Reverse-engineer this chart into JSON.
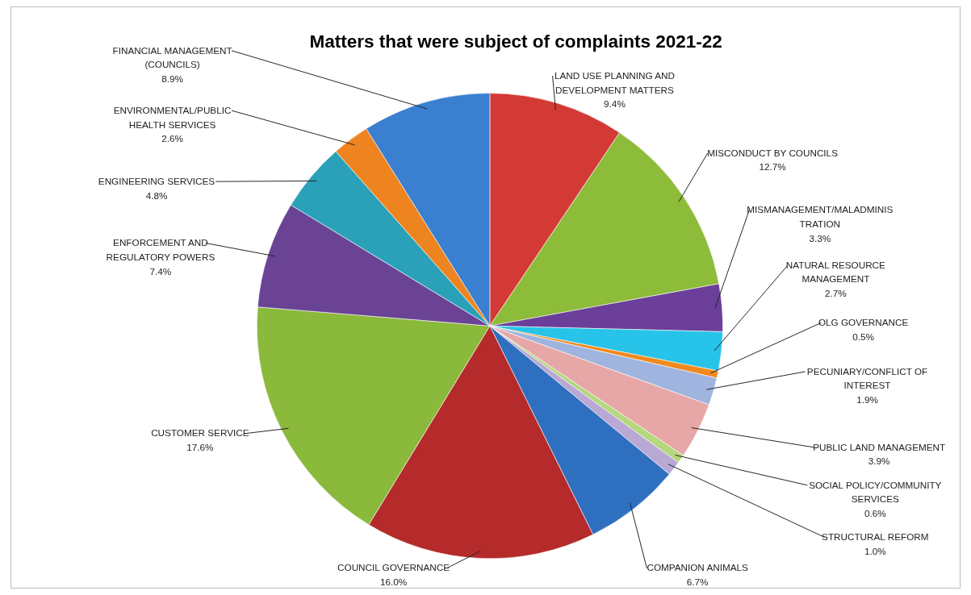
{
  "chart_data": {
    "type": "pie",
    "title": "Matters that were subject of complaints 2021-22",
    "categories": [
      "LAND USE PLANNING AND DEVELOPMENT MATTERS",
      "MISCONDUCT BY COUNCILS",
      "MISMANAGEMENT/MALADMINISTRATION",
      "NATURAL RESOURCE MANAGEMENT",
      "OLG GOVERNANCE",
      "PECUNIARY/CONFLICT OF INTEREST",
      "PUBLIC LAND MANAGEMENT",
      "SOCIAL POLICY/COMMUNITY SERVICES",
      "STRUCTURAL REFORM",
      "COMPANION ANIMALS",
      "COUNCIL GOVERNANCE",
      "CUSTOMER SERVICE",
      "ENFORCEMENT AND REGULATORY POWERS",
      "ENGINEERING SERVICES",
      "ENVIRONMENTAL/PUBLIC HEALTH SERVICES",
      "FINANCIAL MANAGEMENT (COUNCILS)"
    ],
    "values": [
      9.4,
      12.7,
      3.3,
      2.7,
      0.5,
      1.9,
      3.9,
      0.6,
      1.0,
      6.7,
      16.0,
      17.6,
      7.4,
      4.8,
      2.6,
      8.9
    ],
    "value_labels": [
      "9.4%",
      "12.7%",
      "3.3%",
      "2.7%",
      "0.5%",
      "1.9%",
      "3.9%",
      "0.6%",
      "1.0%",
      "6.7%",
      "16.0%",
      "17.6%",
      "7.4%",
      "4.8%",
      "2.6%",
      "8.9%"
    ],
    "colors": [
      "#d33a35",
      "#8dbb3a",
      "#6b3f99",
      "#27c3e8",
      "#f08a1e",
      "#9fb4de",
      "#e8a7a7",
      "#b5d77d",
      "#b9a8d4",
      "#2f6fc0",
      "#b52a2a",
      "#8bb93b",
      "#6a4395",
      "#2aa1b8",
      "#ee8420",
      "#3a7fd0"
    ]
  }
}
